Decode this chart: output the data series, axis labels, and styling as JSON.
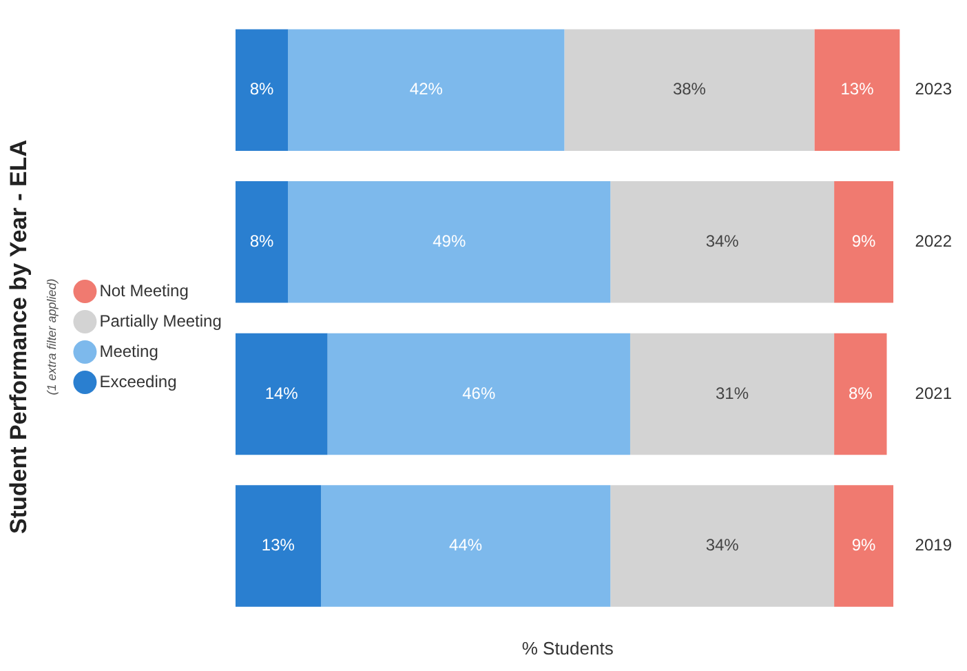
{
  "chart_data": {
    "type": "bar",
    "orientation": "horizontal",
    "stacked": true,
    "title": "Student Performance by Year - ELA",
    "subtitle": "(1 extra filter applied)",
    "xlabel": "% Students",
    "categories": [
      "2023",
      "2022",
      "2021",
      "2019"
    ],
    "series": [
      {
        "name": "Exceeding",
        "color": "#2a7fd0",
        "values": [
          8,
          8,
          14,
          13
        ],
        "value_labels": [
          "8%",
          "8%",
          "14%",
          "13%"
        ]
      },
      {
        "name": "Meeting",
        "color": "#7db9ec",
        "values": [
          42,
          49,
          46,
          44
        ],
        "value_labels": [
          "42%",
          "49%",
          "46%",
          "44%"
        ]
      },
      {
        "name": "Partially Meeting",
        "color": "#d3d3d3",
        "values": [
          38,
          34,
          31,
          34
        ],
        "value_labels": [
          "38%",
          "34%",
          "31%",
          "34%"
        ]
      },
      {
        "name": "Not Meeting",
        "color": "#f07a70",
        "values": [
          13,
          9,
          8,
          9
        ],
        "value_labels": [
          "13%",
          "9%",
          "8%",
          "9%"
        ]
      }
    ],
    "legend": "left",
    "tick_labels": "y",
    "grid": false
  }
}
